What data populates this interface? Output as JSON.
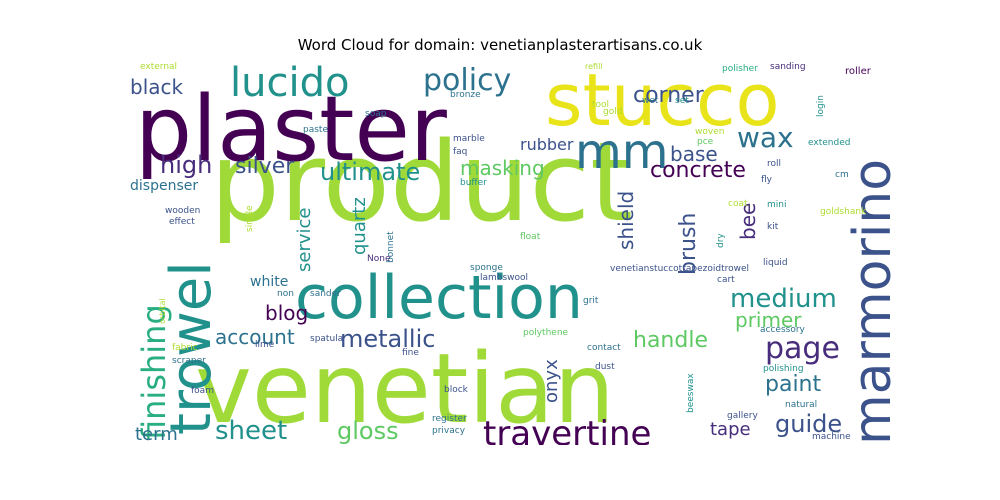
{
  "title": "Word Cloud for domain: venetianplasterartisans.co.uk",
  "palette": {
    "dark_purple": "#440154",
    "purple": "#472d7b",
    "indigo": "#3b528b",
    "blue": "#2c728e",
    "teal": "#21918c",
    "green_teal": "#28ae80",
    "green": "#5ec962",
    "lime": "#addc30",
    "yellow_green": "#a0da39",
    "yellow": "#e8e419"
  },
  "words": [
    {
      "text": "product",
      "color": "#a0da39"
    },
    {
      "text": "plaster",
      "color": "#440154"
    },
    {
      "text": "stucco",
      "color": "#e8e419"
    },
    {
      "text": "venetian",
      "color": "#a0da39"
    },
    {
      "text": "collection",
      "color": "#21918c"
    },
    {
      "text": "trowel",
      "color": "#21918c"
    },
    {
      "text": "marmorino",
      "color": "#3b528b"
    },
    {
      "text": "lucido",
      "color": "#21918c"
    },
    {
      "text": "mm",
      "color": "#2c728e"
    },
    {
      "text": "policy",
      "color": "#2c728e"
    },
    {
      "text": "wax",
      "color": "#2c728e"
    },
    {
      "text": "travertine",
      "color": "#440154"
    },
    {
      "text": "page",
      "color": "#472d7b"
    },
    {
      "text": "medium",
      "color": "#21918c"
    },
    {
      "text": "finishing",
      "color": "#28ae80"
    },
    {
      "text": "ultimate",
      "color": "#21918c"
    },
    {
      "text": "high",
      "color": "#472d7b"
    },
    {
      "text": "silver",
      "color": "#3b528b"
    },
    {
      "text": "black",
      "color": "#3b528b"
    },
    {
      "text": "corner",
      "color": "#3b528b"
    },
    {
      "text": "concrete",
      "color": "#440154"
    },
    {
      "text": "base",
      "color": "#3b528b"
    },
    {
      "text": "masking",
      "color": "#5ec962"
    },
    {
      "text": "metallic",
      "color": "#3b528b"
    },
    {
      "text": "handle",
      "color": "#5ec962"
    },
    {
      "text": "paint",
      "color": "#2c728e"
    },
    {
      "text": "guide",
      "color": "#3b528b"
    },
    {
      "text": "sheet",
      "color": "#21918c"
    },
    {
      "text": "gloss",
      "color": "#5ec962"
    },
    {
      "text": "account",
      "color": "#2c728e"
    },
    {
      "text": "primer",
      "color": "#5ec962"
    },
    {
      "text": "blog",
      "color": "#440154"
    },
    {
      "text": "brush",
      "color": "#3b528b"
    },
    {
      "text": "bee",
      "color": "#472d7b"
    },
    {
      "text": "shield",
      "color": "#3b528b"
    },
    {
      "text": "service",
      "color": "#21918c"
    },
    {
      "text": "quartz",
      "color": "#21918c"
    },
    {
      "text": "onyx",
      "color": "#3b528b"
    },
    {
      "text": "term",
      "color": "#2c728e"
    },
    {
      "text": "tape",
      "color": "#472d7b"
    },
    {
      "text": "rubber",
      "color": "#3b528b"
    },
    {
      "text": "white",
      "color": "#2c728e"
    },
    {
      "text": "dispenser",
      "color": "#2c728e"
    },
    {
      "text": "external",
      "color": "#addc30"
    },
    {
      "text": "refill",
      "color": "#addc30"
    },
    {
      "text": "polisher",
      "color": "#28ae80"
    },
    {
      "text": "sanding",
      "color": "#472d7b"
    },
    {
      "text": "roller",
      "color": "#440154"
    },
    {
      "text": "bronze",
      "color": "#2c728e"
    },
    {
      "text": "tool",
      "color": "#addc30"
    },
    {
      "text": "gold",
      "color": "#addc30"
    },
    {
      "text": "soap",
      "color": "#2c728e"
    },
    {
      "text": "paste",
      "color": "#2c728e"
    },
    {
      "text": "marble",
      "color": "#3b528b"
    },
    {
      "text": "faq",
      "color": "#3b528b"
    },
    {
      "text": "wet",
      "color": "#2c728e"
    },
    {
      "text": "set",
      "color": "#21918c"
    },
    {
      "text": "login",
      "color": "#21918c"
    },
    {
      "text": "woven",
      "color": "#addc30"
    },
    {
      "text": "pce",
      "color": "#5ec962"
    },
    {
      "text": "extended",
      "color": "#21918c"
    },
    {
      "text": "buffer",
      "color": "#21918c"
    },
    {
      "text": "roll",
      "color": "#3b528b"
    },
    {
      "text": "cm",
      "color": "#2c728e"
    },
    {
      "text": "fly",
      "color": "#3b528b"
    },
    {
      "text": "effect",
      "color": "#3b528b"
    },
    {
      "text": "wooden",
      "color": "#3b528b"
    },
    {
      "text": "single",
      "color": "#addc30"
    },
    {
      "text": "coat",
      "color": "#addc30"
    },
    {
      "text": "mini",
      "color": "#21918c"
    },
    {
      "text": "goldshank",
      "color": "#addc30"
    },
    {
      "text": "bonnet",
      "color": "#2c728e"
    },
    {
      "text": "float",
      "color": "#5ec962"
    },
    {
      "text": "kit",
      "color": "#3b528b"
    },
    {
      "text": "dry",
      "color": "#21918c"
    },
    {
      "text": "liquid",
      "color": "#3b528b"
    },
    {
      "text": "None",
      "color": "#472d7b"
    },
    {
      "text": "sponge",
      "color": "#2c728e"
    },
    {
      "text": "sander",
      "color": "#2c728e"
    },
    {
      "text": "lambswool",
      "color": "#3b528b"
    },
    {
      "text": "venetianstuccotrapezoidtrowel",
      "color": "#3b528b"
    },
    {
      "text": "cart",
      "color": "#3b528b"
    },
    {
      "text": "non",
      "color": "#2c728e"
    },
    {
      "text": "grit",
      "color": "#2c728e"
    },
    {
      "text": "spatula",
      "color": "#3b528b"
    },
    {
      "text": "polythene",
      "color": "#5ec962"
    },
    {
      "text": "accessory",
      "color": "#2c728e"
    },
    {
      "text": "lime",
      "color": "#3b528b"
    },
    {
      "text": "fabric",
      "color": "#addc30"
    },
    {
      "text": "contact",
      "color": "#2c728e"
    },
    {
      "text": "fine",
      "color": "#3b528b"
    },
    {
      "text": "polishing",
      "color": "#21918c"
    },
    {
      "text": "scraper",
      "color": "#2c728e"
    },
    {
      "text": "dust",
      "color": "#3b528b"
    },
    {
      "text": "block",
      "color": "#3b528b"
    },
    {
      "text": "beeswax",
      "color": "#21918c"
    },
    {
      "text": "natural",
      "color": "#2c728e"
    },
    {
      "text": "foam",
      "color": "#3b528b"
    },
    {
      "text": "register",
      "color": "#2c728e"
    },
    {
      "text": "gallery",
      "color": "#3b528b"
    },
    {
      "text": "privacy",
      "color": "#2c728e"
    },
    {
      "text": "machine",
      "color": "#3b528b"
    },
    {
      "text": "orbital",
      "color": "#addc30"
    }
  ]
}
